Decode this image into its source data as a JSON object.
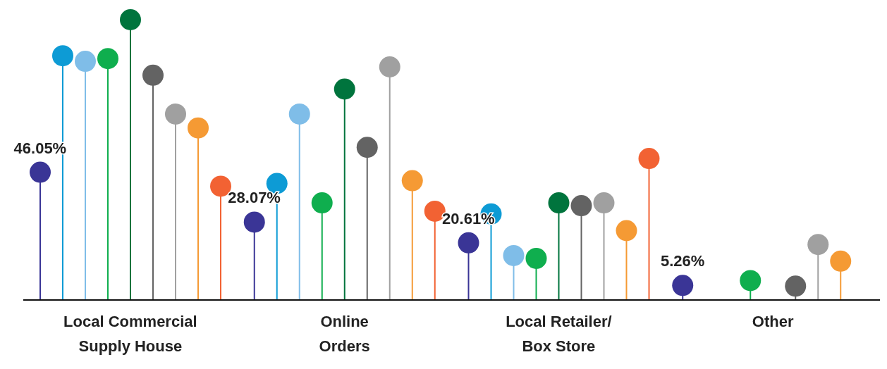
{
  "chart_data": {
    "type": "lollipop",
    "marker": "circle",
    "categories": [
      "Local Commercial Supply House",
      "Online Orders",
      "Local Retailer/ Box Store",
      "Other"
    ],
    "series": [
      {
        "color": "#3a3596",
        "values": [
          46.05,
          28.07,
          20.61,
          5.26
        ],
        "value_labels": [
          "46.05%",
          "28.07%",
          "20.61%",
          "5.26%"
        ]
      },
      {
        "color": "#0d9bd5",
        "values": [
          88,
          42,
          31,
          null
        ]
      },
      {
        "color": "#7fbde8",
        "values": [
          86,
          67,
          16,
          null
        ]
      },
      {
        "color": "#0fae4e",
        "values": [
          87,
          35,
          15,
          7
        ]
      },
      {
        "color": "#00743d",
        "values": [
          101,
          76,
          35,
          null
        ]
      },
      {
        "color": "#636363",
        "values": [
          81,
          55,
          34,
          5
        ]
      },
      {
        "color": "#a0a0a0",
        "values": [
          67,
          84,
          35,
          20
        ]
      },
      {
        "color": "#f59a34",
        "values": [
          62,
          43,
          25,
          14
        ]
      },
      {
        "color": "#f26233",
        "values": [
          41,
          32,
          51,
          null
        ]
      }
    ]
  }
}
